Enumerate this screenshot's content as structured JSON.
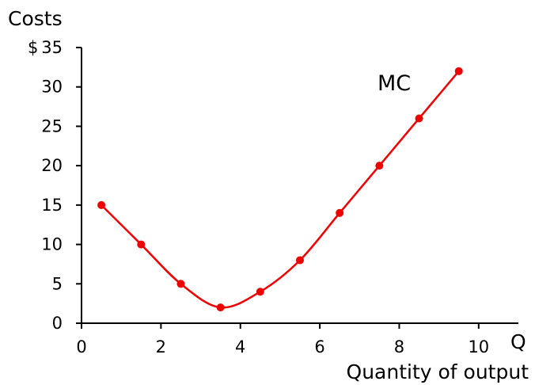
{
  "chart_data": {
    "type": "line",
    "title": "",
    "ylabel_top": "Costs",
    "ylabel_unit": "$",
    "xlabel_letter": "Q",
    "xlabel": "Quantity of output",
    "xlim": [
      0,
      11
    ],
    "ylim": [
      0,
      35
    ],
    "x_ticks": [
      0,
      2,
      4,
      6,
      8,
      10
    ],
    "x_tick_labels": [
      "0",
      "2",
      "4",
      "6",
      "8",
      "10"
    ],
    "y_ticks": [
      0,
      5,
      10,
      15,
      20,
      25,
      30,
      35
    ],
    "y_tick_labels": [
      "0",
      "5",
      "10",
      "15",
      "20",
      "25",
      "30",
      "35"
    ],
    "grid": false,
    "series": [
      {
        "name": "MC",
        "color": "#ee0000",
        "x": [
          0.5,
          1.5,
          2.5,
          3.5,
          4.5,
          5.5,
          6.5,
          7.5,
          8.5,
          9.5
        ],
        "y": [
          15,
          10,
          5,
          2,
          4,
          8,
          14,
          20,
          26,
          32
        ]
      }
    ]
  }
}
